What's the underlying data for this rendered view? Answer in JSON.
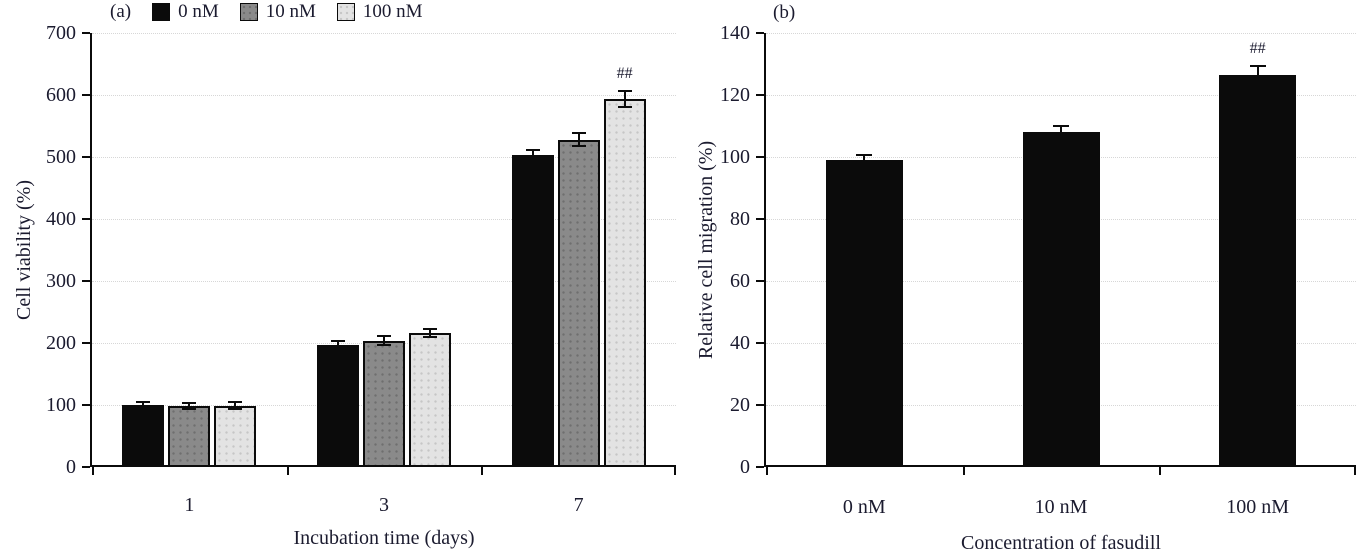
{
  "figure_text_color": "#1b1b2f",
  "axis_color": "#0b0b0b",
  "gridline_color": "#d7d7d7",
  "chart_data": [
    {
      "type": "bar",
      "panel_label": "(a)",
      "title": "",
      "xlabel": "Incubation time (days)",
      "ylabel": "Cell viability (%)",
      "categories": [
        "1",
        "3",
        "7"
      ],
      "series": [
        {
          "name": "0 nM",
          "fill": "#0b0b0b",
          "dot_color": "",
          "values": [
            100,
            196,
            503
          ],
          "errors": [
            5,
            8,
            8
          ]
        },
        {
          "name": "10 nM",
          "fill": "#8a8a8a",
          "dot_color": "#6f6f6f",
          "values": [
            99,
            204,
            528
          ],
          "errors": [
            5,
            8,
            11
          ]
        },
        {
          "name": "100 nM",
          "fill": "#e3e3e3",
          "dot_color": "#c6c6c6",
          "values": [
            99,
            216,
            594
          ],
          "errors": [
            6,
            6,
            13
          ]
        }
      ],
      "ylim": [
        0,
        700
      ],
      "ytick_step": 100,
      "grid": true,
      "legend_position": "top-left",
      "show_legend": true,
      "annotations": [
        {
          "text": "##",
          "category_index": 2,
          "series_index": 2
        }
      ]
    },
    {
      "type": "bar",
      "panel_label": "(b)",
      "title": "",
      "xlabel": "Concentration of fasudill",
      "ylabel": "Relative cell migration (%)",
      "categories": [
        "0 nM",
        "10 nM",
        "100 nM"
      ],
      "series": [
        {
          "name": "",
          "fill": "#0b0b0b",
          "dot_color": "",
          "values": [
            99,
            108,
            126.5
          ],
          "errors": [
            1.5,
            2,
            3
          ]
        }
      ],
      "ylim": [
        0,
        140
      ],
      "ytick_step": 20,
      "grid": true,
      "legend_position": "none",
      "show_legend": false,
      "annotations": [
        {
          "text": "##",
          "category_index": 2,
          "series_index": 0
        }
      ]
    }
  ]
}
